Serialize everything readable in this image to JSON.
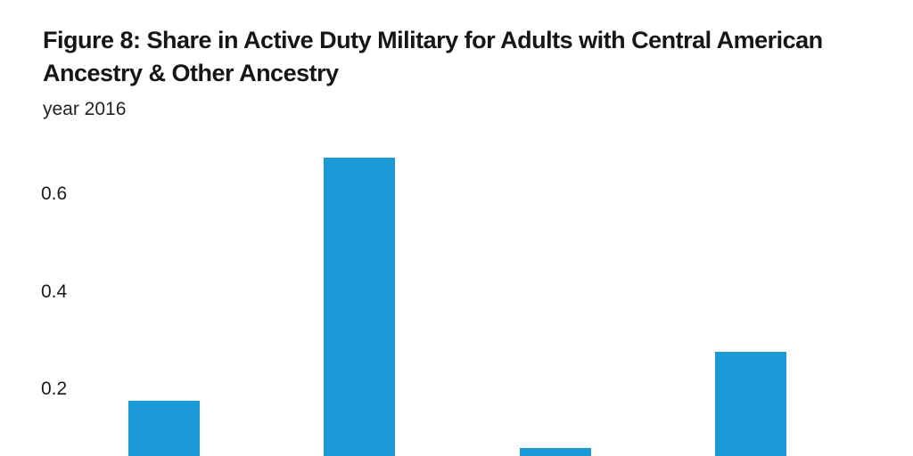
{
  "figure": {
    "title": "Figure 8: Share in Active Duty Military for Adults with Central American Ancestry & Other Ancestry",
    "subtitle": "year 2016"
  },
  "chart_data": {
    "type": "bar",
    "title": "Figure 8: Share in Active Duty Military for Adults with Central American Ancestry & Other Ancestry",
    "subtitle": "year 2016",
    "categories": [
      "",
      "",
      "",
      ""
    ],
    "values": [
      0.176,
      0.675,
      0.079,
      0.277
    ],
    "xlabel": "",
    "ylabel": "",
    "yticks": [
      0.2,
      0.4,
      0.6
    ],
    "ytick_labels": [
      "0.2",
      "0.4",
      "0.6"
    ],
    "ylim": [
      0,
      0.72
    ],
    "grid": false,
    "legend": false,
    "bar_color": "#1a9ad6",
    "background_color": "#ffffff",
    "text_color": "#161616",
    "notes_visible_in_image": "bars and x-axis labels are cropped at the bottom edge of the screenshot"
  }
}
